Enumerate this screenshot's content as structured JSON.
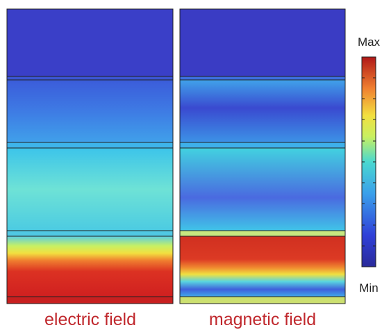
{
  "panels": [
    {
      "label": "electric field"
    },
    {
      "label": "magnetic field"
    }
  ],
  "colorbar": {
    "max_label": "Max",
    "min_label": "Min"
  }
}
